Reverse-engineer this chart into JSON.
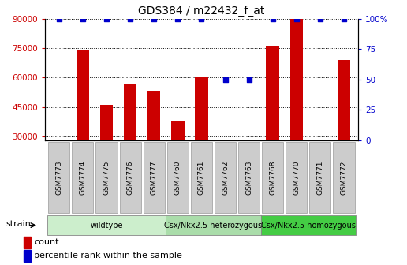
{
  "title": "GDS384 / m22432_f_at",
  "samples": [
    "GSM7773",
    "GSM7774",
    "GSM7775",
    "GSM7776",
    "GSM7777",
    "GSM7760",
    "GSM7761",
    "GSM7762",
    "GSM7763",
    "GSM7768",
    "GSM7770",
    "GSM7771",
    "GSM7772"
  ],
  "counts": [
    28000,
    74000,
    46000,
    57000,
    53000,
    37500,
    60000,
    28000,
    28000,
    76000,
    90000,
    28000,
    69000
  ],
  "percentiles": [
    100,
    100,
    100,
    100,
    100,
    100,
    100,
    50,
    50,
    100,
    100,
    100,
    100
  ],
  "bar_color": "#cc0000",
  "dot_color": "#0000cc",
  "ylim_left": [
    28000,
    90000
  ],
  "ylim_right": [
    0,
    100
  ],
  "yticks_left": [
    30000,
    45000,
    60000,
    75000,
    90000
  ],
  "yticks_right": [
    0,
    25,
    50,
    75,
    100
  ],
  "group_configs": [
    {
      "indices": [
        0,
        1,
        2,
        3,
        4
      ],
      "label": "wildtype",
      "color": "#cceecc"
    },
    {
      "indices": [
        5,
        6,
        7,
        8
      ],
      "label": "Csx/Nkx2.5 heterozygous",
      "color": "#aaddaa"
    },
    {
      "indices": [
        9,
        10,
        11,
        12
      ],
      "label": "Csx/Nkx2.5 homozygous",
      "color": "#44cc44"
    }
  ],
  "strain_label": "strain",
  "legend_count_label": "count",
  "legend_percentile_label": "percentile rank within the sample",
  "background_color": "#ffffff",
  "tick_bg_color": "#cccccc"
}
